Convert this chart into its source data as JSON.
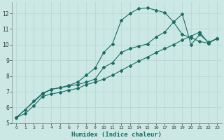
{
  "bg_color": "#cce8e4",
  "grid_color": "#b8d8d4",
  "line_color": "#1a6e64",
  "xlabel": "Humidex (Indice chaleur)",
  "xlim": [
    -0.5,
    23.5
  ],
  "ylim": [
    5,
    12.7
  ],
  "xtick_labels": [
    "0",
    "1",
    "2",
    "3",
    "4",
    "5",
    "6",
    "7",
    "8",
    "9",
    "10",
    "11",
    "12",
    "13",
    "14",
    "15",
    "16",
    "17",
    "18",
    "19",
    "20",
    "21",
    "22",
    "23"
  ],
  "xtick_vals": [
    0,
    1,
    2,
    3,
    4,
    5,
    6,
    7,
    8,
    9,
    10,
    11,
    12,
    13,
    14,
    15,
    16,
    17,
    18,
    19,
    20,
    21,
    22,
    23
  ],
  "ytick_vals": [
    5,
    6,
    7,
    8,
    9,
    10,
    11,
    12
  ],
  "line1_x": [
    0,
    1,
    2,
    3,
    4,
    5,
    6,
    7,
    8,
    9,
    10,
    11,
    12,
    13,
    14,
    15,
    16,
    17,
    18,
    19,
    20,
    21,
    22,
    23
  ],
  "line1_y": [
    5.35,
    5.85,
    6.4,
    6.9,
    7.15,
    7.25,
    7.4,
    7.6,
    8.05,
    8.5,
    9.5,
    10.05,
    11.55,
    12.0,
    12.3,
    12.35,
    12.2,
    12.05,
    11.45,
    10.65,
    10.45,
    10.2,
    10.1,
    10.4
  ],
  "line2_x": [
    0,
    3,
    4,
    5,
    6,
    7,
    8,
    9,
    10,
    11,
    12,
    13,
    14,
    15,
    16,
    17,
    18,
    19,
    20,
    21,
    22,
    23
  ],
  "line2_y": [
    5.35,
    6.85,
    7.15,
    7.25,
    7.35,
    7.45,
    7.6,
    7.8,
    8.55,
    8.85,
    9.5,
    9.75,
    9.9,
    10.05,
    10.5,
    10.8,
    11.45,
    11.95,
    10.0,
    10.65,
    10.15,
    10.4
  ],
  "line3_x": [
    0,
    1,
    2,
    3,
    4,
    5,
    6,
    7,
    8,
    9,
    10,
    11,
    12,
    13,
    14,
    15,
    16,
    17,
    18,
    19,
    20,
    21,
    22,
    23
  ],
  "line3_y": [
    5.35,
    5.6,
    6.1,
    6.7,
    6.85,
    6.95,
    7.1,
    7.2,
    7.45,
    7.6,
    7.8,
    8.05,
    8.35,
    8.65,
    8.95,
    9.2,
    9.5,
    9.75,
    10.0,
    10.3,
    10.55,
    10.8,
    10.1,
    10.4
  ]
}
